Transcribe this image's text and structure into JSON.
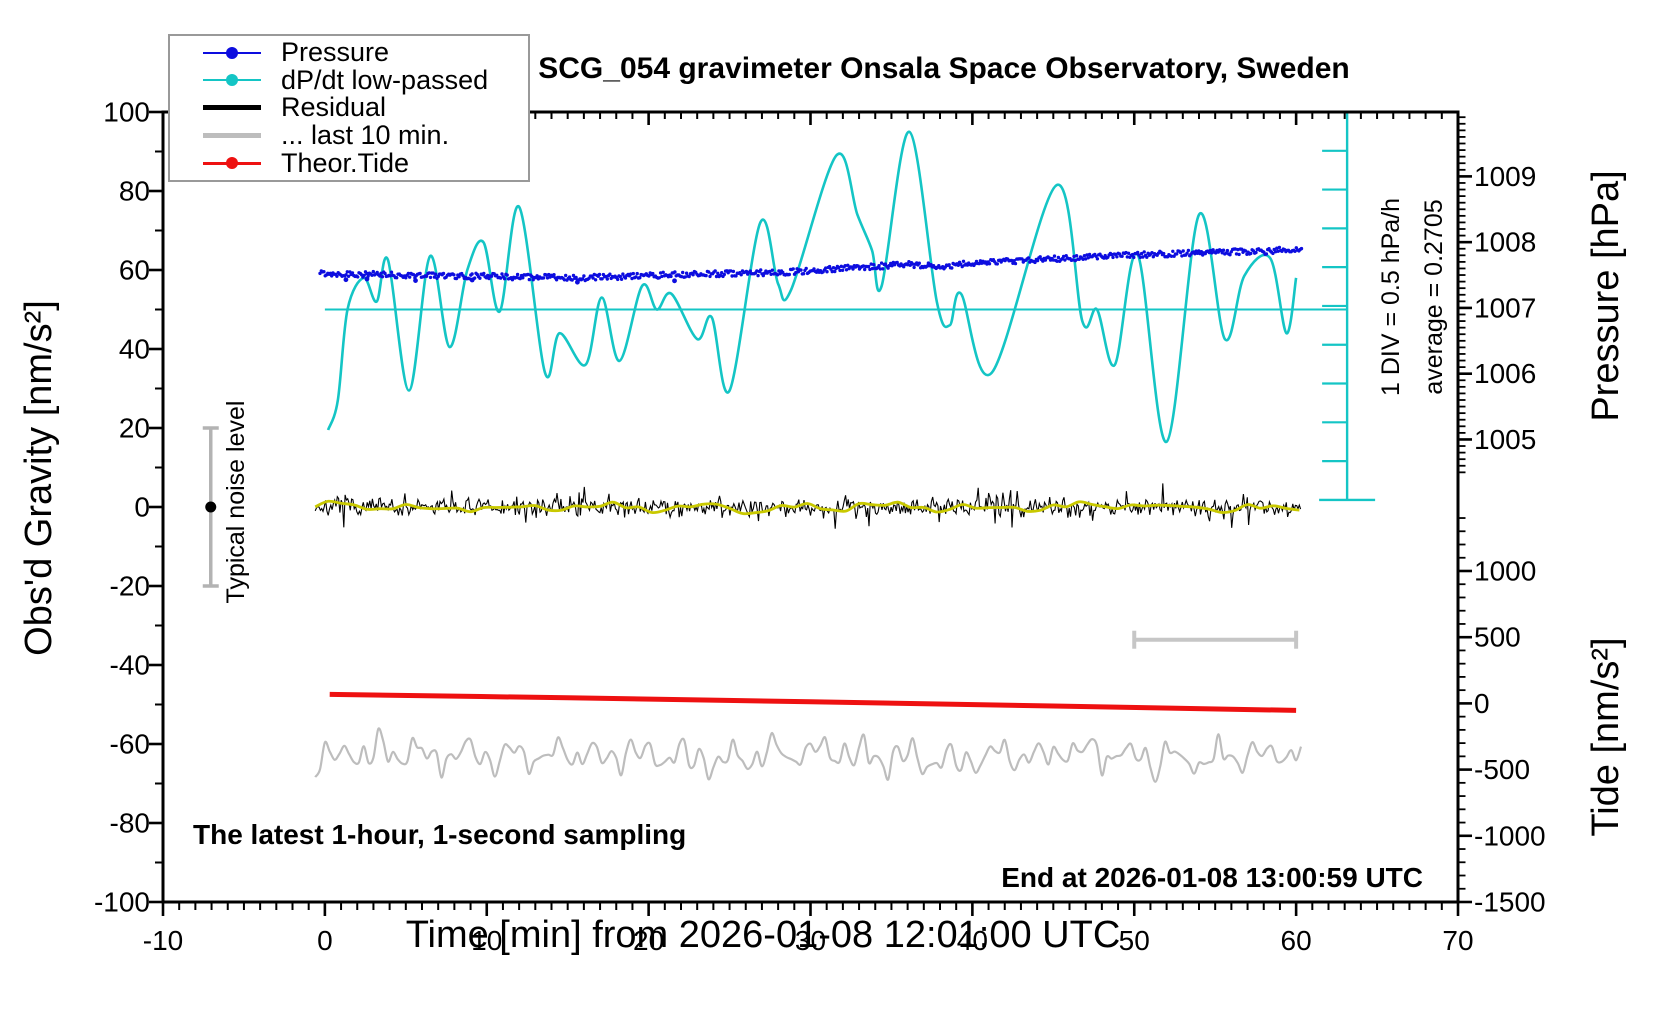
{
  "texts": {
    "title": "SCG_054 gravimeter Onsala Space Observatory, Sweden",
    "xlabel": "Time [min] from 2026-01-08 12:01:00 UTC",
    "ylabel_left": "Obs'd Gravity [nm/s²]",
    "ylabel_pressure": "Pressure [hPa]",
    "ylabel_tide": "Tide [nm/s²]",
    "noise_label": "Typical noise level",
    "div_label": "1 DIV = 0.5 hPa/h",
    "average_label": "average = 0.2705",
    "sampling_note": "The latest 1-hour, 1-second sampling",
    "end_note": "End at 2026-01-08 13:00:59 UTC"
  },
  "chart_data": {
    "type": "line",
    "title": "SCG_054 gravimeter Onsala Space Observatory, Sweden",
    "xlabel": "Time [min] from 2026-01-08 12:01:00 UTC",
    "ylabel": "Obs'd Gravity [nm/s²]",
    "y2label_top": "Pressure [hPa]",
    "y2label_bottom": "Tide [nm/s²]",
    "grid": false,
    "legend_position": "top-left",
    "axes": {
      "x": {
        "min": -10,
        "max": 70,
        "major": 10,
        "minor": 1,
        "tick_labels": [
          -10,
          0,
          10,
          20,
          30,
          40,
          50,
          60,
          70
        ]
      },
      "gravity": {
        "min": -100,
        "max": 100,
        "major": 20,
        "minor": 10,
        "tick_labels": [
          -100,
          -80,
          -60,
          -40,
          -20,
          0,
          20,
          40,
          60,
          80,
          100
        ]
      },
      "pressure": {
        "anchor_value": 1007,
        "anchor_gravity": 50.4,
        "gravity_per_unit": 16.65,
        "major": 1,
        "minor": 0.1,
        "tick_labels": [
          1005,
          1006,
          1007,
          1008,
          1009
        ],
        "tick_range": [
          1004.5,
          1009.9
        ]
      },
      "tide": {
        "value_at_gravity_min": -1500,
        "gravity_per_unit": 0.03352,
        "major": 500,
        "minor": 100,
        "tick_labels": [
          -1500,
          -1000,
          -500,
          0,
          500,
          1000
        ],
        "tick_range": [
          -1500,
          1400
        ]
      }
    },
    "legend_items": [
      {
        "label": "Pressure",
        "color": "#0d0ddf",
        "width": 2,
        "dot": true
      },
      {
        "label": "dP/dt low-passed",
        "color": "#14c5c5",
        "width": 2,
        "dot": true
      },
      {
        "label": "Residual",
        "color": "#000000",
        "width": 5,
        "dot": false
      },
      {
        "label": "... last 10 min.",
        "color": "#bdbdbd",
        "width": 5,
        "dot": false
      },
      {
        "label": "Theor.Tide",
        "color": "#ee1111",
        "width": 3,
        "dot": true
      }
    ],
    "series": {
      "pressure": {
        "name": "Pressure",
        "axis": "pressure",
        "color": "#0d0ddf",
        "style": "dots",
        "average_trend_hpa_per_h": 0.2705,
        "noise_hpa": 0.045,
        "keypoints": [
          [
            -0.3,
            1007.53
          ],
          [
            4,
            1007.5
          ],
          [
            8,
            1007.49
          ],
          [
            12,
            1007.47
          ],
          [
            16,
            1007.46
          ],
          [
            20,
            1007.49
          ],
          [
            24,
            1007.52
          ],
          [
            28,
            1007.54
          ],
          [
            30,
            1007.56
          ],
          [
            33,
            1007.62
          ],
          [
            36,
            1007.66
          ],
          [
            38,
            1007.63
          ],
          [
            40,
            1007.68
          ],
          [
            43,
            1007.72
          ],
          [
            46,
            1007.76
          ],
          [
            49,
            1007.8
          ],
          [
            52,
            1007.82
          ],
          [
            55,
            1007.85
          ],
          [
            58,
            1007.86
          ],
          [
            60.4,
            1007.9
          ]
        ],
        "outliers": [
          [
            1.3,
            -0.09
          ],
          [
            2.6,
            -0.07
          ],
          [
            5.6,
            -0.08
          ],
          [
            9.1,
            -0.06
          ],
          [
            15.6,
            -0.07
          ],
          [
            21.6,
            -0.09
          ]
        ]
      },
      "dpdt": {
        "name": "dP/dt low-passed",
        "axis": "gravity",
        "color": "#14c5c5",
        "baseline": 50,
        "keypoints": [
          [
            0.2,
            19.5
          ],
          [
            0.8,
            27
          ],
          [
            1.4,
            50
          ],
          [
            2.4,
            58
          ],
          [
            3.2,
            52
          ],
          [
            3.9,
            62.5
          ],
          [
            5.2,
            29.5
          ],
          [
            6.5,
            63.5
          ],
          [
            7.7,
            40.5
          ],
          [
            8.8,
            60
          ],
          [
            9.8,
            67
          ],
          [
            10.8,
            49.5
          ],
          [
            12.0,
            76
          ],
          [
            13.6,
            34
          ],
          [
            14.5,
            44
          ],
          [
            16.1,
            36
          ],
          [
            17.1,
            53
          ],
          [
            18.2,
            37
          ],
          [
            19.6,
            56
          ],
          [
            20.5,
            50
          ],
          [
            21.4,
            54
          ],
          [
            23.0,
            42.5
          ],
          [
            23.9,
            48
          ],
          [
            25.0,
            29.5
          ],
          [
            26.9,
            72
          ],
          [
            28.0,
            56.5
          ],
          [
            28.8,
            55
          ],
          [
            31.6,
            89
          ],
          [
            32.9,
            74
          ],
          [
            33.8,
            65
          ],
          [
            34.4,
            56
          ],
          [
            36.1,
            95
          ],
          [
            37.8,
            52
          ],
          [
            38.6,
            46
          ],
          [
            39.3,
            54
          ],
          [
            41.2,
            34
          ],
          [
            45.2,
            81.5
          ],
          [
            46.8,
            47
          ],
          [
            47.7,
            50
          ],
          [
            48.8,
            36
          ],
          [
            50.2,
            64
          ],
          [
            52.0,
            16.5
          ],
          [
            54.0,
            74
          ],
          [
            55.6,
            42.5
          ],
          [
            56.8,
            58.5
          ],
          [
            58.4,
            63
          ],
          [
            59.4,
            44
          ],
          [
            60.0,
            58
          ]
        ]
      },
      "residual": {
        "name": "Residual",
        "axis": "gravity",
        "color": "#000000",
        "center": 0,
        "span": [
          -0.6,
          60.3
        ],
        "core_noise": 2.2,
        "spike_noise": 9
      },
      "residual_smooth": {
        "name": "Residual smoothed",
        "axis": "gravity",
        "color": "#c9c900",
        "center": 0,
        "amplitude": 1.3,
        "span": [
          -0.6,
          60.3
        ]
      },
      "last10": {
        "name": "... last 10 min.",
        "axis": "gravity",
        "color": "#bdbdbd",
        "center": -63,
        "amplitude": 5,
        "span": [
          -0.6,
          60.3
        ]
      },
      "theor_tide": {
        "name": "Theor.Tide",
        "axis": "tide",
        "color": "#ee1111",
        "keypoints": [
          [
            0.3,
            68
          ],
          [
            15,
            42
          ],
          [
            30,
            12
          ],
          [
            45,
            -20
          ],
          [
            60,
            -53
          ]
        ]
      }
    },
    "annotations": {
      "noise_bar": {
        "t": -7.05,
        "value": 0,
        "error": 20,
        "color": "#b3b3b3",
        "label": "Typical noise level"
      },
      "ref_line": {
        "value": 50,
        "t_start": 0,
        "t_end": 63.15,
        "color": "#14c5c5"
      },
      "div_bar": {
        "t": 63.15,
        "g_top": 100,
        "g_bottom": 1.8,
        "divisions": 10,
        "color": "#14c5c5",
        "label": "1 DIV = 0.5 hPa/h",
        "average_label": "average = 0.2705"
      },
      "ten_min_bar": {
        "t_start": 50,
        "t_end": 60,
        "gravity": -33.6,
        "color": "#c6c6c6"
      }
    }
  }
}
